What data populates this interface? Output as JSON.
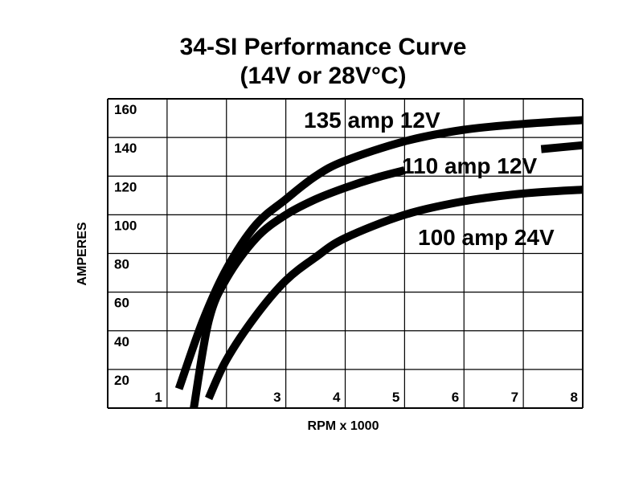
{
  "chart_data": {
    "type": "line",
    "title": "34-SI Performance Curve",
    "subtitle": "(14V or 28V°C)",
    "xlabel": "RPM x 1000",
    "ylabel": "AMPERES",
    "xlim": [
      0,
      8
    ],
    "ylim": [
      0,
      160
    ],
    "x_ticks": [
      "1",
      "3",
      "4",
      "5",
      "6",
      "7",
      "8"
    ],
    "x_tick_values": [
      1,
      3,
      4,
      5,
      6,
      7,
      8
    ],
    "y_ticks": [
      "20",
      "40",
      "60",
      "80",
      "100",
      "120",
      "140",
      "160"
    ],
    "y_tick_values": [
      20,
      40,
      60,
      80,
      100,
      120,
      140,
      160
    ],
    "grid": true,
    "series": [
      {
        "name": "135 amp 12V",
        "color": "#000000",
        "x": [
          1.2,
          1.6,
          2.0,
          2.5,
          3.0,
          3.5,
          4.0,
          5.0,
          6.0,
          7.0,
          8.0
        ],
        "y": [
          10,
          45,
          72,
          95,
          108,
          120,
          128,
          138,
          144,
          147,
          149
        ]
      },
      {
        "name": "110 amp 12V",
        "color": "#000000",
        "x": [
          1.45,
          1.7,
          2.0,
          2.5,
          3.0,
          3.5,
          4.0,
          4.5,
          5.0
        ],
        "y": [
          0,
          45,
          67,
          88,
          100,
          108,
          114,
          119,
          123
        ]
      },
      {
        "name": "110 amp 12V",
        "color": "#000000",
        "x": [
          7.3,
          8.0
        ],
        "y": [
          134,
          136
        ]
      },
      {
        "name": "100 amp 24V",
        "color": "#000000",
        "x": [
          1.7,
          2.0,
          2.5,
          3.0,
          3.5,
          4.0,
          5.0,
          6.0,
          7.0,
          8.0
        ],
        "y": [
          5,
          25,
          48,
          66,
          78,
          88,
          100,
          107,
          111,
          113
        ]
      }
    ]
  }
}
